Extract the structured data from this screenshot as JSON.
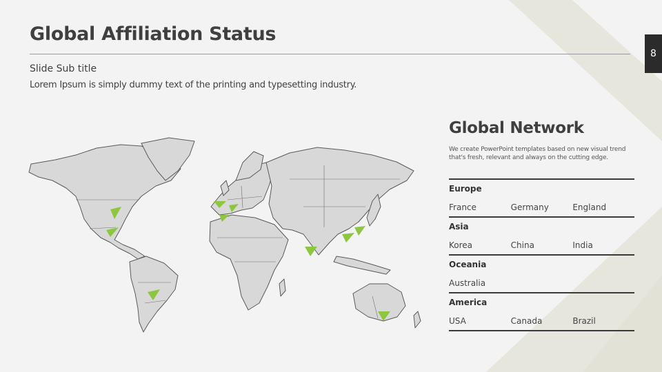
{
  "header": {
    "title": "Global Affiliation Status",
    "page_number": "8"
  },
  "intro": {
    "subtitle": "Slide Sub title",
    "text": "Lorem Ipsum is simply dummy text of the printing and typesetting industry."
  },
  "map": {
    "land_color": "#d8d8d8",
    "border_color": "#595959",
    "marker_color": "#8dc63f",
    "marker_icon": "triangle-pin-icon"
  },
  "network": {
    "title": "Global Network",
    "description_line1": "We create PowerPoint templates based on new visual trend",
    "description_line2": "that's fresh, relevant and always on the cutting edge.",
    "regions": [
      {
        "name": "Europe",
        "items": [
          "France",
          "Germany",
          "England"
        ]
      },
      {
        "name": "Asia",
        "items": [
          "Korea",
          "China",
          "India"
        ]
      },
      {
        "name": "Oceania",
        "items": [
          "Australia"
        ]
      },
      {
        "name": "America",
        "items": [
          "USA",
          "Canada",
          "Brazil"
        ]
      }
    ]
  }
}
